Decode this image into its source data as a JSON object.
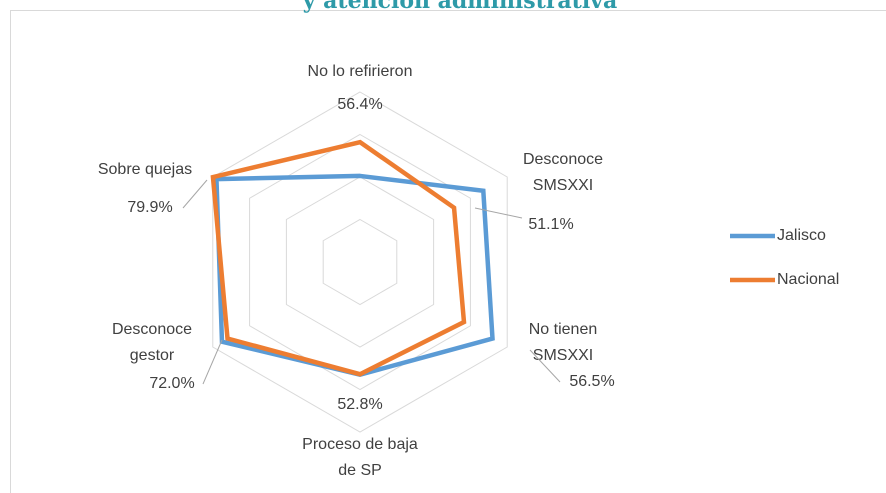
{
  "chart_data": {
    "type": "radar",
    "title": "y atención administrativa",
    "categories": [
      [
        "No lo refirieron"
      ],
      [
        "Desconoce",
        "SMSXXI"
      ],
      [
        "No tienen",
        "SMSXXI"
      ],
      [
        "Proceso de baja",
        "de SP"
      ],
      [
        "Desconoce",
        "gestor"
      ],
      [
        "Sobre quejas"
      ]
    ],
    "rlim": [
      0,
      80
    ],
    "rticks": [
      20,
      40,
      60,
      80
    ],
    "grid": true,
    "legend": "right",
    "series": [
      {
        "name": "Jalisco",
        "color": "#5b9bd5",
        "values": [
          40.5,
          67,
          72,
          53,
          75,
          78
        ]
      },
      {
        "name": "Nacional",
        "color": "#ed7d31",
        "values": [
          56.4,
          51.1,
          56.5,
          52.8,
          72.0,
          79.9
        ],
        "value_labels": [
          "56.4%",
          "51.1%",
          "56.5%",
          "52.8%",
          "72.0%",
          "79.9%"
        ]
      }
    ]
  }
}
